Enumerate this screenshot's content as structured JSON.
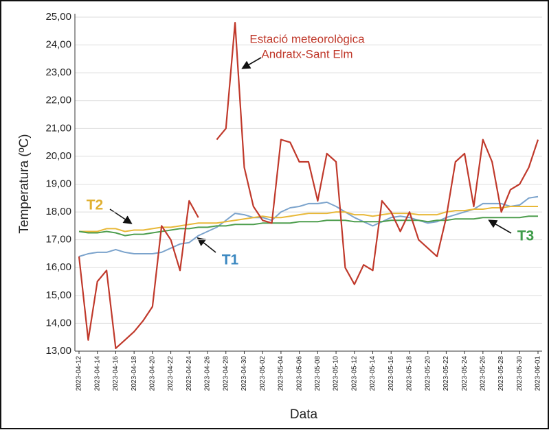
{
  "chart_data": {
    "type": "line",
    "xlabel": "Data",
    "ylabel": "Temperatura (ºC)",
    "x": [
      "2023-04-12",
      "2023-04-13",
      "2023-04-14",
      "2023-04-15",
      "2023-04-16",
      "2023-04-17",
      "2023-04-18",
      "2023-04-19",
      "2023-04-20",
      "2023-04-21",
      "2023-04-22",
      "2023-04-23",
      "2023-04-24",
      "2023-04-25",
      "2023-04-26",
      "2023-04-27",
      "2023-04-28",
      "2023-04-29",
      "2023-04-30",
      "2023-05-01",
      "2023-05-02",
      "2023-05-03",
      "2023-05-04",
      "2023-05-05",
      "2023-05-06",
      "2023-05-07",
      "2023-05-08",
      "2023-05-09",
      "2023-05-10",
      "2023-05-11",
      "2023-05-12",
      "2023-05-13",
      "2023-05-14",
      "2023-05-15",
      "2023-05-16",
      "2023-05-17",
      "2023-05-18",
      "2023-05-19",
      "2023-05-20",
      "2023-05-21",
      "2023-05-22",
      "2023-05-23",
      "2023-05-24",
      "2023-05-25",
      "2023-05-26",
      "2023-05-27",
      "2023-05-28",
      "2023-05-29",
      "2023-05-30",
      "2023-05-31",
      "2023-06-01"
    ],
    "xlim": [
      "2023-04-12",
      "2023-06-01"
    ],
    "xticks": [
      "2023-04-12",
      "2023-04-14",
      "2023-04-16",
      "2023-04-18",
      "2023-04-20",
      "2023-04-22",
      "2023-04-24",
      "2023-04-26",
      "2023-04-28",
      "2023-04-30",
      "2023-05-02",
      "2023-05-04",
      "2023-05-06",
      "2023-05-08",
      "2023-05-10",
      "2023-05-12",
      "2023-05-14",
      "2023-05-16",
      "2023-05-18",
      "2023-05-20",
      "2023-05-22",
      "2023-05-24",
      "2023-05-26",
      "2023-05-28",
      "2023-05-30",
      "2023-06-01"
    ],
    "ylim": [
      13,
      25
    ],
    "yticks": [
      {
        "value": 13,
        "label": "13,00"
      },
      {
        "value": 14,
        "label": "14,00"
      },
      {
        "value": 15,
        "label": "15,00"
      },
      {
        "value": 16,
        "label": "16,00"
      },
      {
        "value": 17,
        "label": "17,00"
      },
      {
        "value": 18,
        "label": "18,00"
      },
      {
        "value": 19,
        "label": "19,00"
      },
      {
        "value": 20,
        "label": "20,00"
      },
      {
        "value": 21,
        "label": "21,00"
      },
      {
        "value": 22,
        "label": "22,00"
      },
      {
        "value": 23,
        "label": "23,00"
      },
      {
        "value": 24,
        "label": "24,00"
      },
      {
        "value": 25,
        "label": "25,00"
      }
    ],
    "grid": true,
    "annotations": [
      "Estació meteorològica",
      "Andratx-Sant Elm"
    ],
    "annotation_color": "#c0392b",
    "series": [
      {
        "color": "#c0392b",
        "values": [
          16.4,
          13.4,
          15.5,
          15.9,
          13.1,
          13.4,
          13.7,
          14.1,
          14.6,
          17.5,
          17.0,
          15.9,
          18.4,
          17.8,
          null,
          20.6,
          21.0,
          24.8,
          19.6,
          18.2,
          17.7,
          17.6,
          20.6,
          20.5,
          19.8,
          19.8,
          18.4,
          20.1,
          19.8,
          16.0,
          15.4,
          16.1,
          15.9,
          18.4,
          18.0,
          17.3,
          18.0,
          17.0,
          16.7,
          16.4,
          17.8,
          19.8,
          20.1,
          18.2,
          20.6,
          19.8,
          18.0,
          18.8,
          19.0,
          19.6,
          20.6
        ]
      },
      {
        "name": "T1",
        "color": "#7ba3cc",
        "label_color": "#3a87c0",
        "values": [
          16.4,
          16.5,
          16.55,
          16.55,
          16.65,
          16.55,
          16.5,
          16.5,
          16.5,
          16.55,
          16.7,
          16.85,
          16.9,
          17.15,
          17.3,
          17.45,
          17.7,
          17.95,
          17.9,
          17.8,
          17.8,
          17.7,
          18.0,
          18.15,
          18.2,
          18.3,
          18.3,
          18.35,
          18.2,
          18.0,
          17.8,
          17.65,
          17.5,
          17.65,
          17.8,
          17.85,
          17.8,
          17.7,
          17.6,
          17.65,
          17.8,
          17.9,
          18.0,
          18.1,
          18.3,
          18.3,
          18.3,
          18.2,
          18.25,
          18.5,
          18.55
        ]
      },
      {
        "name": "T2",
        "color": "#e8b838",
        "label_color": "#e0b030",
        "values": [
          17.3,
          17.3,
          17.3,
          17.4,
          17.4,
          17.3,
          17.35,
          17.35,
          17.4,
          17.45,
          17.45,
          17.5,
          17.55,
          17.6,
          17.6,
          17.6,
          17.65,
          17.7,
          17.75,
          17.8,
          17.85,
          17.8,
          17.8,
          17.85,
          17.9,
          17.95,
          17.95,
          17.95,
          18.0,
          18.0,
          17.9,
          17.9,
          17.85,
          17.9,
          17.95,
          17.95,
          17.95,
          17.9,
          17.9,
          17.9,
          18.0,
          18.05,
          18.05,
          18.1,
          18.1,
          18.15,
          18.15,
          18.2,
          18.2,
          18.2,
          18.2
        ]
      },
      {
        "name": "T3",
        "color": "#4e9e4e",
        "label_color": "#3f9c4a",
        "values": [
          17.3,
          17.25,
          17.25,
          17.3,
          17.25,
          17.15,
          17.2,
          17.2,
          17.25,
          17.3,
          17.35,
          17.4,
          17.4,
          17.45,
          17.45,
          17.5,
          17.5,
          17.55,
          17.55,
          17.55,
          17.6,
          17.6,
          17.6,
          17.6,
          17.65,
          17.65,
          17.65,
          17.7,
          17.7,
          17.7,
          17.65,
          17.65,
          17.65,
          17.65,
          17.7,
          17.7,
          17.7,
          17.7,
          17.65,
          17.7,
          17.7,
          17.75,
          17.75,
          17.75,
          17.8,
          17.8,
          17.8,
          17.8,
          17.8,
          17.85,
          17.85
        ]
      }
    ]
  }
}
